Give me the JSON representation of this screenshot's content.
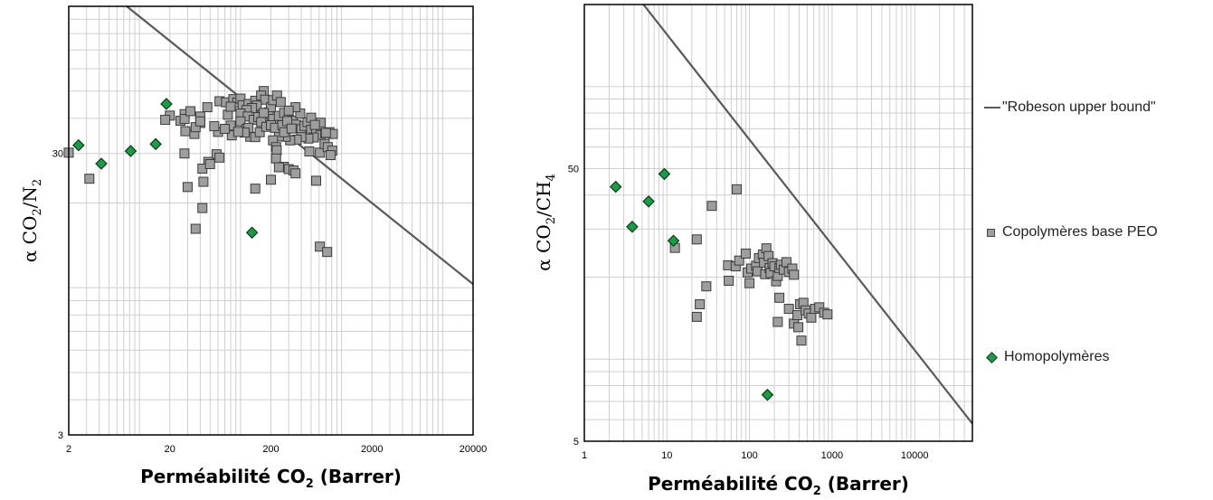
{
  "chart_data": [
    {
      "type": "scatter",
      "title": "",
      "xlabel": "Perméabilité CO",
      "xlabel_sub": "2",
      "xlabel_suffix": " (Barrer)",
      "ylabel": "α CO",
      "ylabel_sub": "2",
      "ylabel_mid": "/N",
      "ylabel_sub2": "2",
      "xscale": "log",
      "yscale": "log",
      "xlim": [
        2,
        20000
      ],
      "ylim": [
        3,
        100
      ],
      "xticks": [
        "2",
        "20",
        "200",
        "2000",
        "20000"
      ],
      "yticks": [
        "3",
        "30"
      ],
      "grid": true,
      "robeson": {
        "name": "\"Robeson upper bound\"",
        "x": [
          7.5,
          20000
        ],
        "y": [
          100,
          10.3
        ]
      },
      "series": [
        {
          "name": "Copolymères base PEO",
          "color": "#9e9e9e",
          "marker": "square",
          "points": [
            [
              2.0,
              30.2
            ],
            [
              3.2,
              24.4
            ],
            [
              28,
              41.4
            ],
            [
              25.5,
              39.2
            ],
            [
              40,
              38.5
            ],
            [
              28,
              39.8
            ],
            [
              47,
              43.8
            ],
            [
              28.5,
              36
            ],
            [
              27.9,
              30
            ],
            [
              32,
              42.4
            ],
            [
              35,
              35.2
            ],
            [
              36,
              37.2
            ],
            [
              40,
              40.6
            ],
            [
              42,
              19.2
            ],
            [
              36,
              16.2
            ],
            [
              43,
              23.8
            ],
            [
              40,
              39
            ],
            [
              62,
              46
            ],
            [
              72,
              45.6
            ],
            [
              85,
              46.8
            ],
            [
              93,
              45.5
            ],
            [
              100,
              47
            ],
            [
              75,
              41.2
            ],
            [
              80,
              44
            ],
            [
              105,
              44.5
            ],
            [
              120,
              45
            ],
            [
              140,
              46.2
            ],
            [
              170,
              50
            ],
            [
              160,
              48.2
            ],
            [
              175,
              46.6
            ],
            [
              145,
              44.4
            ],
            [
              130,
              43.5
            ],
            [
              115,
              42.8
            ],
            [
              100,
              41.6
            ],
            [
              118,
              40.6
            ],
            [
              100,
              39
            ],
            [
              135,
              39.5
            ],
            [
              150,
              40.4
            ],
            [
              190,
              42
            ],
            [
              200,
              43.8
            ],
            [
              210,
              46.4
            ],
            [
              230,
              48.2
            ],
            [
              250,
              45.7
            ],
            [
              170,
              41.8
            ],
            [
              160,
              38.8
            ],
            [
              210,
              39.8
            ],
            [
              240,
              40.8
            ],
            [
              270,
              41.8
            ],
            [
              300,
              40.5
            ],
            [
              330,
              39.2
            ],
            [
              355,
              38
            ],
            [
              400,
              36.6
            ],
            [
              430,
              37.6
            ],
            [
              460,
              38.8
            ],
            [
              500,
              40.2
            ],
            [
              390,
              41.6
            ],
            [
              350,
              43.8
            ],
            [
              300,
              42.6
            ],
            [
              500,
              36.4
            ],
            [
              560,
              35.3
            ],
            [
              620,
              34.9
            ],
            [
              690,
              35.4
            ],
            [
              760,
              35.7
            ],
            [
              820,
              35.2
            ],
            [
              530,
              34.2
            ],
            [
              470,
              33.9
            ],
            [
              400,
              34.3
            ],
            [
              360,
              33.6
            ],
            [
              310,
              33.4
            ],
            [
              280,
              34.4
            ],
            [
              240,
              34.5
            ],
            [
              210,
              33.4
            ],
            [
              225,
              31.6
            ],
            [
              228,
              30.8
            ],
            [
              225,
              28.8
            ],
            [
              268,
              26.9
            ],
            [
              300,
              26.4
            ],
            [
              335,
              26.1
            ],
            [
              240,
              26.8
            ],
            [
              115,
              36.7
            ],
            [
              125,
              34.4
            ],
            [
              140,
              34.3
            ],
            [
              155,
              35.7
            ],
            [
              180,
              37.3
            ],
            [
              200,
              37.8
            ],
            [
              220,
              37
            ],
            [
              260,
              37.8
            ],
            [
              290,
              39.1
            ],
            [
              270,
              35.7
            ],
            [
              320,
              36.8
            ],
            [
              700,
              35.5
            ],
            [
              80,
              37.7
            ],
            [
              82,
              34.8
            ],
            [
              60,
              35.8
            ],
            [
              55,
              37.5
            ],
            [
              70,
              36.7
            ],
            [
              120,
              37
            ],
            [
              110,
              35.6
            ],
            [
              95,
              35.8
            ],
            [
              58,
              29.8
            ],
            [
              62,
              29
            ],
            [
              48,
              28
            ],
            [
              42,
              26.5
            ],
            [
              50,
              27.5
            ],
            [
              30,
              22.8
            ],
            [
              20,
              40.9
            ],
            [
              18,
              39.5
            ],
            [
              620,
              38.6
            ],
            [
              545,
              37.9
            ],
            [
              480,
              30.5
            ],
            [
              610,
              30.2
            ],
            [
              680,
              32.4
            ],
            [
              730,
              31.6
            ],
            [
              810,
              30.7
            ],
            [
              780,
              29.6
            ],
            [
              140,
              22.5
            ],
            [
              200,
              24.2
            ],
            [
              350,
              25.5
            ],
            [
              560,
              24
            ],
            [
              610,
              14
            ],
            [
              720,
              13.4
            ]
          ]
        },
        {
          "name": "Homopolymères",
          "color": "#1f9a47",
          "marker": "diamond",
          "points": [
            [
              2.5,
              32.1
            ],
            [
              4.2,
              27.6
            ],
            [
              8.2,
              30.6
            ],
            [
              14.5,
              32.4
            ],
            [
              18.5,
              45
            ],
            [
              130,
              15.7
            ]
          ]
        }
      ]
    },
    {
      "type": "scatter",
      "title": "",
      "xlabel": "Perméabilité CO",
      "xlabel_sub": "2",
      "xlabel_suffix": " (Barrer)",
      "ylabel": "α CO",
      "ylabel_sub": "2",
      "ylabel_mid": "/CH",
      "ylabel_sub2": "4",
      "xscale": "log",
      "yscale": "log",
      "xlim": [
        1,
        50000
      ],
      "ylim": [
        5,
        200
      ],
      "xticks": [
        "1",
        "10",
        "100",
        "1000",
        "10000"
      ],
      "yticks": [
        "5",
        "50"
      ],
      "grid": true,
      "robeson": {
        "name": "\"Robeson upper bound\"",
        "x": [
          5.2,
          50000
        ],
        "y": [
          200,
          5.8
        ]
      },
      "series": [
        {
          "name": "Copolymères base PEO",
          "color": "#9e9e9e",
          "marker": "square",
          "points": [
            [
              70,
              42
            ],
            [
              35,
              36.5
            ],
            [
              23,
              27.5
            ],
            [
              12.5,
              25.6
            ],
            [
              55,
              22.1
            ],
            [
              56,
              19.4
            ],
            [
              68,
              21.9
            ],
            [
              75,
              23
            ],
            [
              90,
              24.4
            ],
            [
              95,
              20.8
            ],
            [
              100,
              19
            ],
            [
              105,
              21.5
            ],
            [
              120,
              22
            ],
            [
              125,
              21
            ],
            [
              130,
              23.5
            ],
            [
              145,
              24.2
            ],
            [
              150,
              22.6
            ],
            [
              155,
              20.5
            ],
            [
              160,
              25.5
            ],
            [
              170,
              23.9
            ],
            [
              175,
              21.6
            ],
            [
              180,
              20.7
            ],
            [
              190,
              22.5
            ],
            [
              200,
              21.9
            ],
            [
              210,
              19.3
            ],
            [
              220,
              20.2
            ],
            [
              230,
              21.6
            ],
            [
              240,
              22.2
            ],
            [
              260,
              21.3
            ],
            [
              280,
              22.7
            ],
            [
              300,
              20.9
            ],
            [
              330,
              21.5
            ],
            [
              345,
              20.4
            ],
            [
              30,
              18.5
            ],
            [
              23,
              14.3
            ],
            [
              25,
              15.9
            ],
            [
              220,
              13.7
            ],
            [
              230,
              16.8
            ],
            [
              300,
              15.3
            ],
            [
              345,
              13.5
            ],
            [
              380,
              14.5
            ],
            [
              410,
              15.9
            ],
            [
              450,
              16.1
            ],
            [
              480,
              15.1
            ],
            [
              520,
              14.7
            ],
            [
              560,
              14.2
            ],
            [
              620,
              15.3
            ],
            [
              700,
              15.5
            ],
            [
              800,
              14.8
            ],
            [
              880,
              14.6
            ],
            [
              425,
              11.7
            ],
            [
              390,
              13.1
            ]
          ]
        },
        {
          "name": "Homopolymères",
          "color": "#1f9a47",
          "marker": "diamond",
          "points": [
            [
              2.4,
              42.9
            ],
            [
              3.8,
              30.6
            ],
            [
              6,
              37.9
            ],
            [
              9.3,
              47.8
            ],
            [
              12,
              27.2
            ],
            [
              165,
              7.4
            ]
          ]
        }
      ]
    }
  ],
  "legend": {
    "items": [
      {
        "symbol": "line",
        "label": "\"Robeson upper bound\""
      },
      {
        "symbol": "square",
        "label": "Copolymères base PEO"
      },
      {
        "symbol": "diamond",
        "label": "Homopolymères"
      }
    ]
  },
  "colors": {
    "robeson_line": "#595959",
    "grid": "#cfcfcf",
    "frame": "#000000"
  }
}
